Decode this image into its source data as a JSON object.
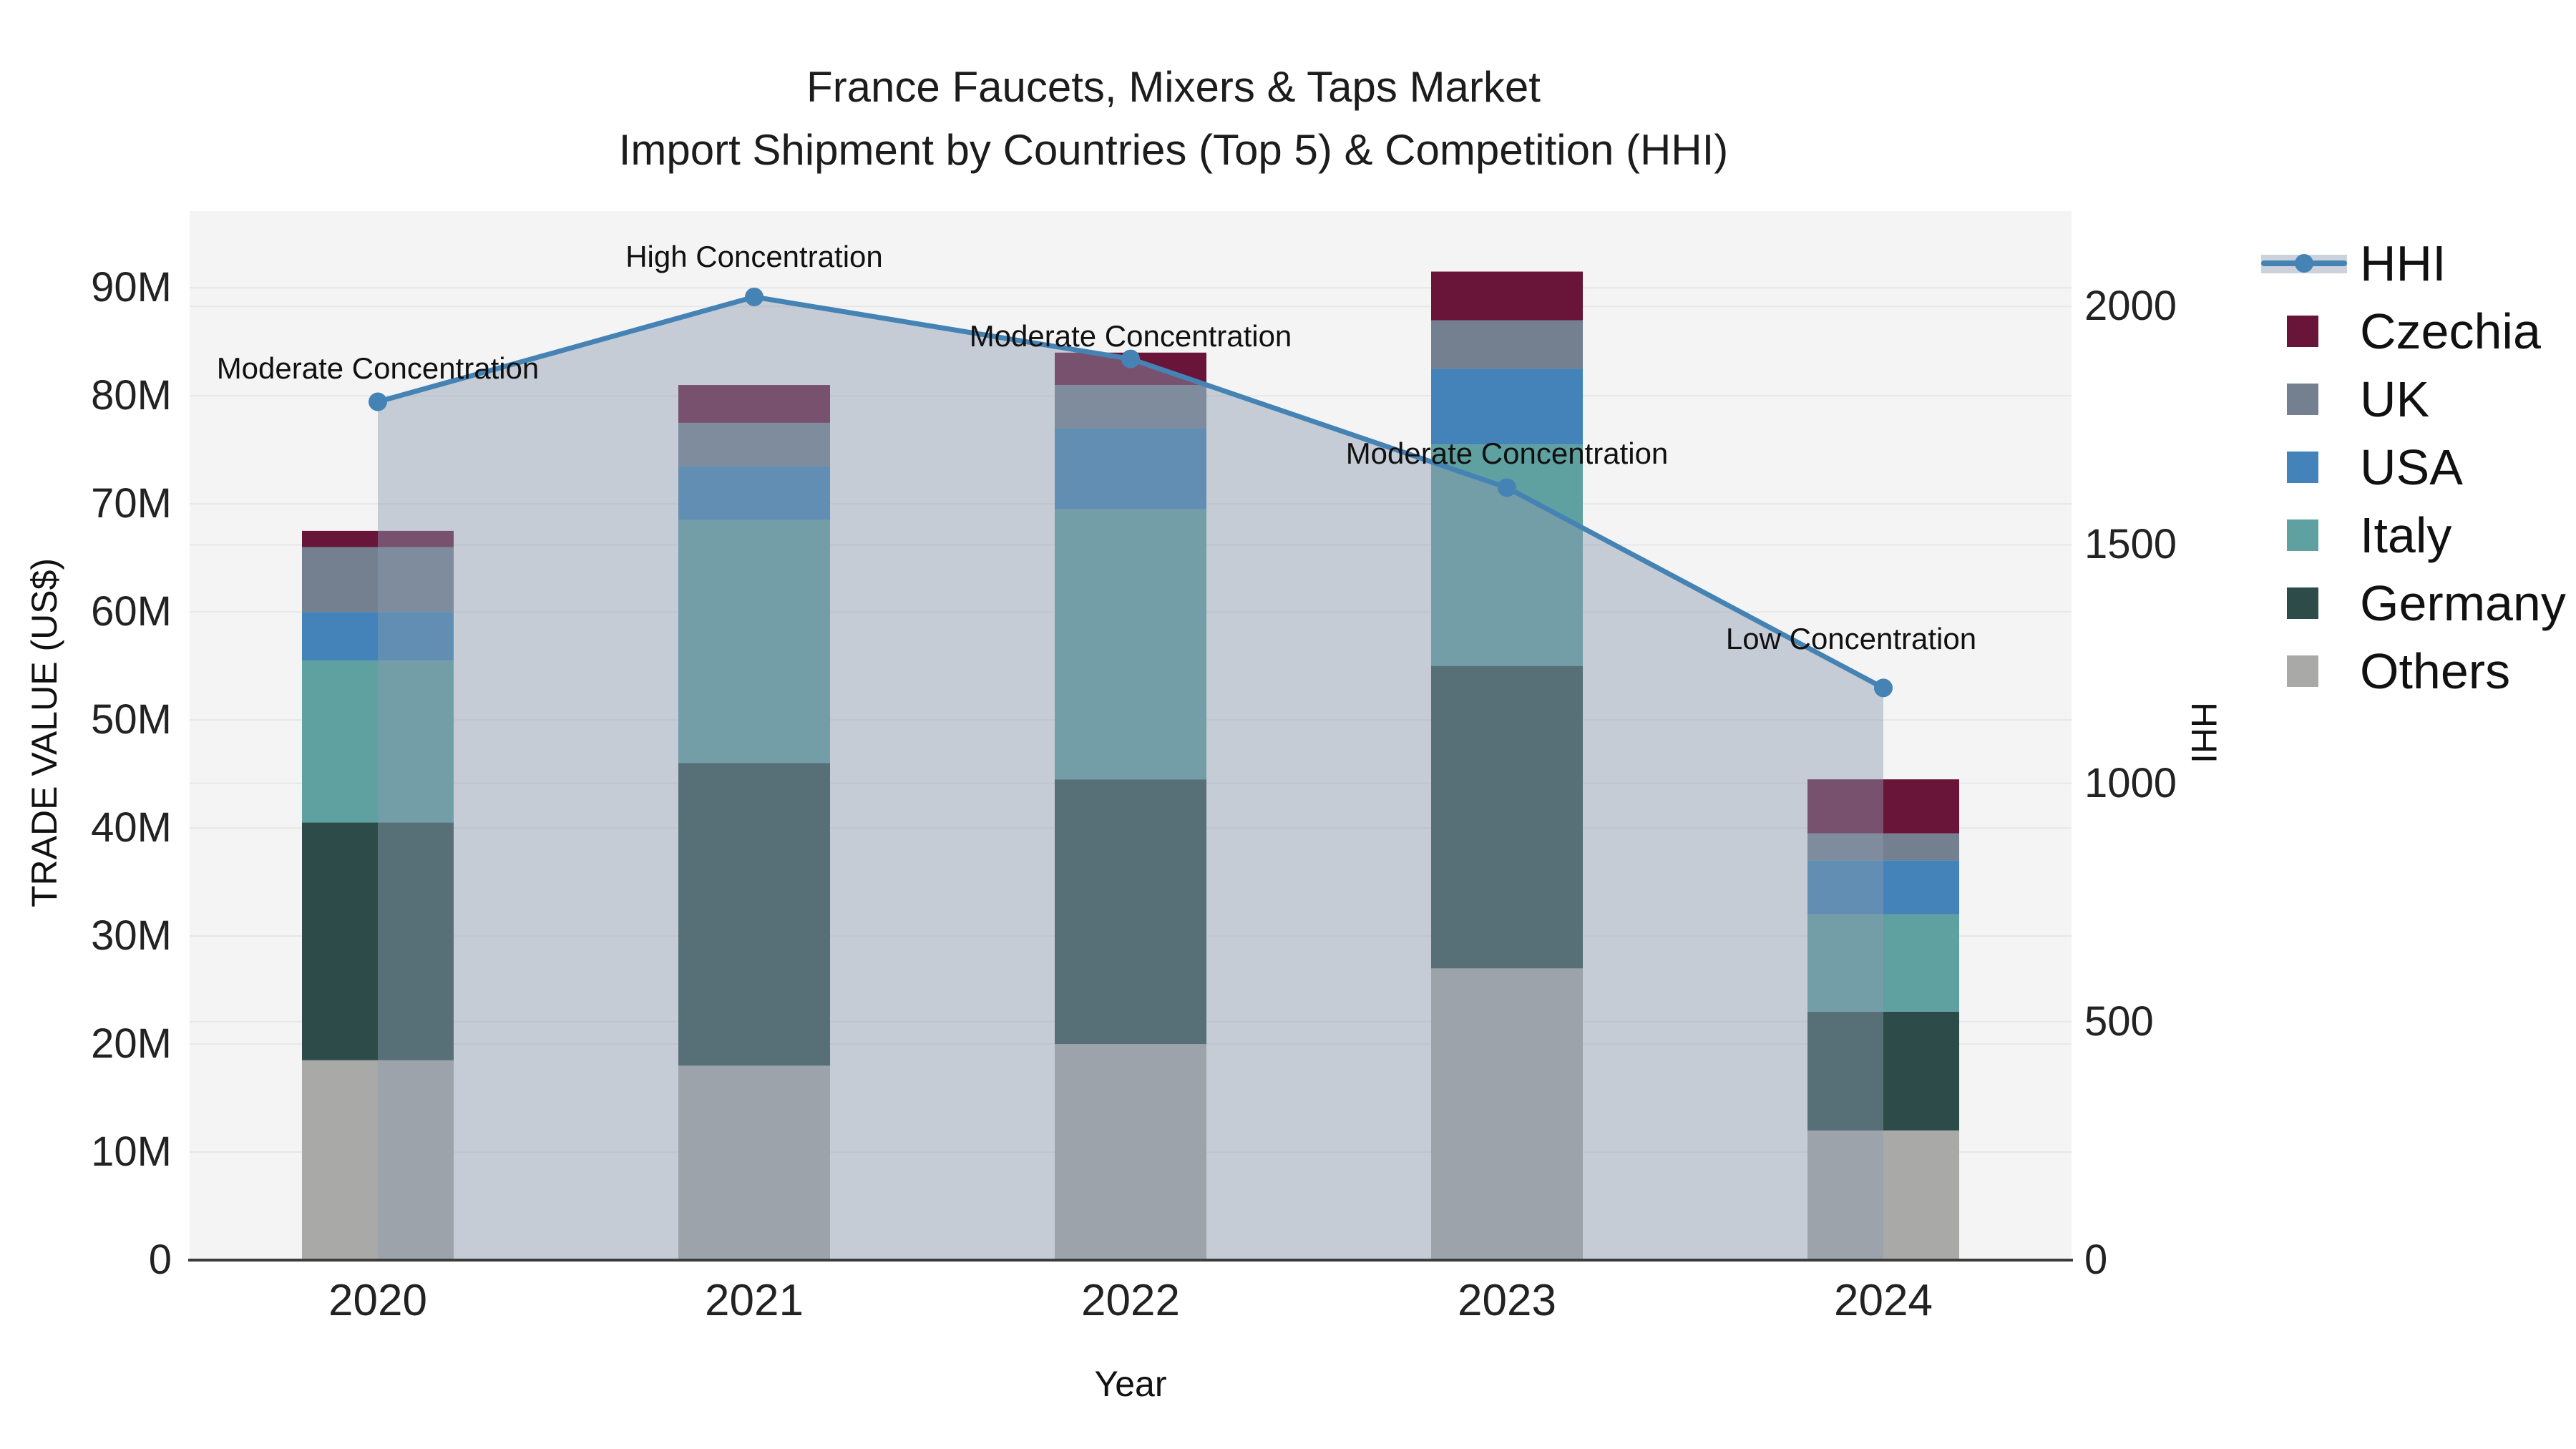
{
  "chart_data": {
    "type": "bar+line",
    "title_line1": "France Faucets, Mixers & Taps Market",
    "title_line2": "Import Shipment by Countries (Top 5) & Competition (HHI)",
    "xlabel": "Year",
    "ylabel_left": "TRADE VALUE (US$)",
    "ylabel_right": "HHI",
    "categories": [
      "2020",
      "2021",
      "2022",
      "2023",
      "2024"
    ],
    "bar_unit": "M US$",
    "bar_series": [
      {
        "name": "Others",
        "color": "#a9a9a7",
        "values": [
          18.5,
          18,
          20,
          27,
          12
        ]
      },
      {
        "name": "Germany",
        "color": "#2d4c49",
        "values": [
          22,
          28,
          24.5,
          28,
          11
        ]
      },
      {
        "name": "Italy",
        "color": "#5fa0a1",
        "values": [
          15,
          22.5,
          25,
          20.5,
          9
        ]
      },
      {
        "name": "USA",
        "color": "#4383b9",
        "values": [
          4.5,
          5,
          7.5,
          7,
          5
        ]
      },
      {
        "name": "UK",
        "color": "#74808f",
        "values": [
          6,
          4,
          4,
          4.5,
          2.5
        ]
      },
      {
        "name": "Czechia",
        "color": "#681539",
        "values": [
          1.5,
          3.5,
          3,
          4.5,
          5
        ]
      }
    ],
    "bar_totals": [
      67.5,
      81,
      84,
      91.5,
      44.5
    ],
    "line_series": {
      "name": "HHI",
      "color": "#4583b5",
      "area_fill": "rgba(140,155,175,0.45)",
      "values": [
        1800,
        2020,
        1890,
        1620,
        1200
      ]
    },
    "annotations": [
      "Moderate Concentration",
      "High Concentration",
      "Moderate Concentration",
      "Moderate Concentration",
      "Low Concentration"
    ],
    "y_left": {
      "ticks": [
        "0",
        "10M",
        "20M",
        "30M",
        "40M",
        "50M",
        "60M",
        "70M",
        "80M",
        "90M"
      ],
      "tick_values": [
        0,
        10,
        20,
        30,
        40,
        50,
        60,
        70,
        80,
        90
      ],
      "max": 97.1,
      "grid": true
    },
    "y_right": {
      "ticks": [
        "0",
        "500",
        "1000",
        "1500",
        "2000"
      ],
      "tick_values": [
        0,
        500,
        1000,
        1500,
        2000
      ],
      "max": 2200,
      "grid": true
    },
    "legend": [
      "HHI",
      "Czechia",
      "UK",
      "USA",
      "Italy",
      "Germany",
      "Others"
    ],
    "colors": {
      "plot_bg": "#f4f4f4",
      "grid": "#e7e7e7",
      "axis_line": "#3c3c3c"
    }
  }
}
